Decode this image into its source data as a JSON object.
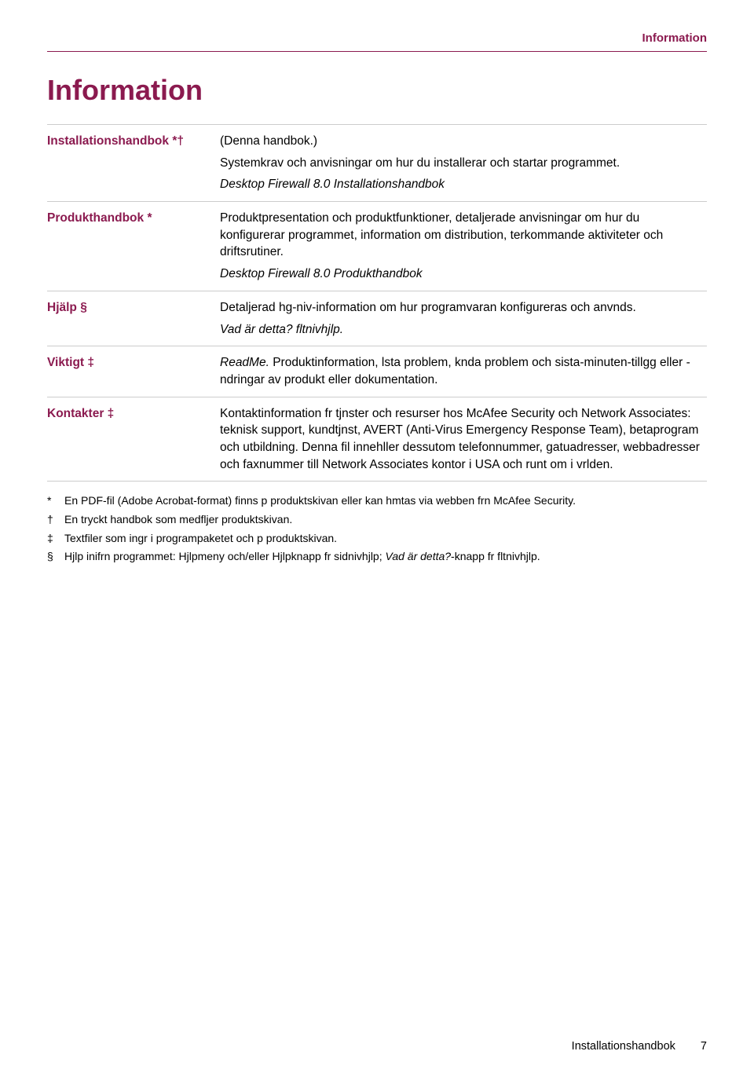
{
  "colors": {
    "accent": "#8b1a4f",
    "text": "#000000",
    "rule": "#8b1a4f",
    "row_border": "#cccccc"
  },
  "header": {
    "label": "Information"
  },
  "title": "Information",
  "rows": [
    {
      "term": "Installationshandbok *†",
      "paras": [
        {
          "text": "(Denna handbok.)",
          "italic": false
        },
        {
          "text": "Systemkrav och anvisningar om hur du installerar och startar programmet.",
          "italic": false
        },
        {
          "text": "Desktop Firewall 8.0 Installationshandbok",
          "italic": true
        }
      ]
    },
    {
      "term": "Produkthandbok *",
      "paras": [
        {
          "text": "Produktpresentation och produktfunktioner, detaljerade anvisningar om hur du konfigurerar programmet, information om distribution, terkommande aktiviteter och driftsrutiner.",
          "italic": false
        },
        {
          "text": "Desktop Firewall 8.0 Produkthandbok",
          "italic": true
        }
      ]
    },
    {
      "term": "Hjälp §",
      "paras": [
        {
          "text": "Detaljerad hg-niv-information om hur programvaran konfigureras och anvnds.",
          "italic": false
        },
        {
          "text": "Vad är detta? fltnivhjlp.",
          "italic": true
        }
      ]
    },
    {
      "term": "Viktigt ‡",
      "paras": [
        {
          "text": "ReadMe. Produktinformation, lsta problem, knda problem och sista-minuten-tillgg eller -ndringar av produkt eller dokumentation.",
          "italic": true,
          "leadItalicWord": "ReadMe.",
          "rest": " Produktinformation, lsta problem, knda problem och sista-minuten-tillgg eller -ndringar av produkt eller dokumentation."
        }
      ]
    },
    {
      "term": "Kontakter ‡",
      "paras": [
        {
          "text": "Kontaktinformation fr tjnster och resurser hos McAfee Security och Network Associates: teknisk support, kundtjnst, AVERT (Anti-Virus Emergency Response Team), betaprogram och utbildning. Denna fil innehller dessutom telefonnummer, gatuadresser, webbadresser och faxnummer till Network Associates kontor i USA och runt om i vrlden.",
          "italic": false
        }
      ]
    }
  ],
  "footnotes": [
    {
      "sym": "*",
      "text": "En PDF-fil (Adobe Acrobat-format) finns p produktskivan eller kan hmtas via webben frn McAfee Security."
    },
    {
      "sym": "†",
      "text": "En tryckt handbok som medfljer produktskivan."
    },
    {
      "sym": "‡",
      "text": "Textfiler som ingr i programpaketet och p produktskivan."
    },
    {
      "sym": "§",
      "text_pre": "Hjlp inifrn programmet: Hjlpmeny och/eller Hjlpknapp fr sidnivhjlp; ",
      "text_italic": "Vad är detta?",
      "text_post": "-knapp fr fltnivhjlp."
    }
  ],
  "footer": {
    "doc": "Installationshandbok",
    "page": "7"
  }
}
